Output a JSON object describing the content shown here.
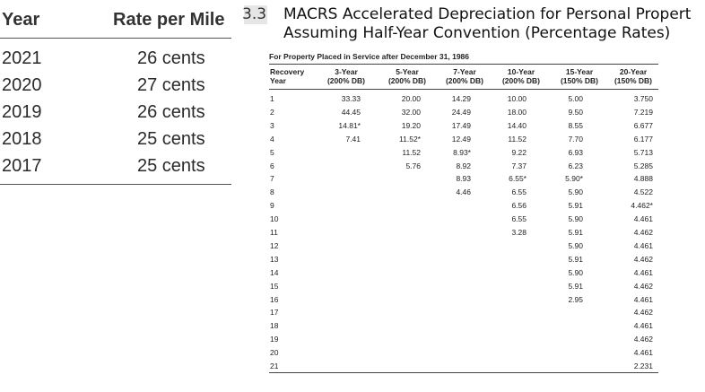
{
  "left_table": {
    "headers": {
      "year": "Year",
      "rate": "Rate per Mile"
    },
    "rows": [
      {
        "year": "2021",
        "rate": "26 cents"
      },
      {
        "year": "2020",
        "rate": "27 cents"
      },
      {
        "year": "2019",
        "rate": "26 cents"
      },
      {
        "year": "2018",
        "rate": "25 cents"
      },
      {
        "year": "2017",
        "rate": "25 cents"
      }
    ]
  },
  "macrs": {
    "table_number": "3.3",
    "title_line1": "MACRS Accelerated Depreciation for Personal Propert",
    "title_line2": "Assuming Half-Year Convention (Percentage Rates)",
    "caption": "For Property Placed in Service after December 31, 1986",
    "columns": [
      {
        "line1": "Recovery",
        "line2": "Year"
      },
      {
        "line1": "3-Year",
        "line2": "(200% DB)"
      },
      {
        "line1": "5-Year",
        "line2": "(200% DB)"
      },
      {
        "line1": "7-Year",
        "line2": "(200% DB)"
      },
      {
        "line1": "10-Year",
        "line2": "(200% DB)"
      },
      {
        "line1": "15-Year",
        "line2": "(150% DB)"
      },
      {
        "line1": "20-Year",
        "line2": "(150% DB)"
      }
    ],
    "rows": [
      [
        "1",
        "33.33",
        "20.00",
        "14.29",
        "10.00",
        "5.00",
        "3.750"
      ],
      [
        "2",
        "44.45",
        "32.00",
        "24.49",
        "18.00",
        "9.50",
        "7.219"
      ],
      [
        "3",
        "14.81*",
        "19.20",
        "17.49",
        "14.40",
        "8.55",
        "6.677"
      ],
      [
        "4",
        "7.41",
        "11.52*",
        "12.49",
        "11.52",
        "7.70",
        "6.177"
      ],
      [
        "5",
        "",
        "11.52",
        "8.93*",
        "9.22",
        "6.93",
        "5.713"
      ],
      [
        "6",
        "",
        "5.76",
        "8.92",
        "7.37",
        "6.23",
        "5.285"
      ],
      [
        "7",
        "",
        "",
        "8.93",
        "6.55*",
        "5.90*",
        "4.888"
      ],
      [
        "8",
        "",
        "",
        "4.46",
        "6.55",
        "5.90",
        "4.522"
      ],
      [
        "9",
        "",
        "",
        "",
        "6.56",
        "5.91",
        "4.462*"
      ],
      [
        "10",
        "",
        "",
        "",
        "6.55",
        "5.90",
        "4.461"
      ],
      [
        "11",
        "",
        "",
        "",
        "3.28",
        "5.91",
        "4.462"
      ],
      [
        "12",
        "",
        "",
        "",
        "",
        "5.90",
        "4.461"
      ],
      [
        "13",
        "",
        "",
        "",
        "",
        "5.91",
        "4.462"
      ],
      [
        "14",
        "",
        "",
        "",
        "",
        "5.90",
        "4.461"
      ],
      [
        "15",
        "",
        "",
        "",
        "",
        "5.91",
        "4.462"
      ],
      [
        "16",
        "",
        "",
        "",
        "",
        "2.95",
        "4.461"
      ],
      [
        "17",
        "",
        "",
        "",
        "",
        "",
        "4.462"
      ],
      [
        "18",
        "",
        "",
        "",
        "",
        "",
        "4.461"
      ],
      [
        "19",
        "",
        "",
        "",
        "",
        "",
        "4.462"
      ],
      [
        "20",
        "",
        "",
        "",
        "",
        "",
        "4.461"
      ],
      [
        "21",
        "",
        "",
        "",
        "",
        "",
        "2.231"
      ]
    ]
  }
}
